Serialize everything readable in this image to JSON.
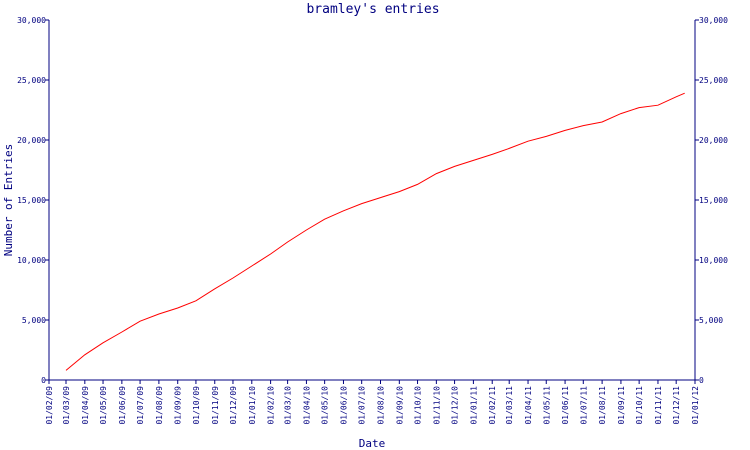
{
  "chart_data": {
    "type": "line",
    "title": "bramley's entries",
    "xlabel": "Date",
    "ylabel": "Number of Entries",
    "ylim": [
      0,
      30000
    ],
    "yticks": [
      0,
      5000,
      10000,
      15000,
      20000,
      25000,
      30000
    ],
    "ytick_labels": [
      "0",
      "5,000",
      "10,000",
      "15,000",
      "20,000",
      "25,000",
      "30,000"
    ],
    "right_axis": true,
    "grid": false,
    "x_tick_labels": [
      "01/02/09",
      "01/03/09",
      "01/04/09",
      "01/05/09",
      "01/06/09",
      "01/07/09",
      "01/08/09",
      "01/09/09",
      "01/10/09",
      "01/11/09",
      "01/12/09",
      "01/01/10",
      "01/02/10",
      "01/03/10",
      "01/04/10",
      "01/05/10",
      "01/06/10",
      "01/07/10",
      "01/08/10",
      "01/09/10",
      "01/10/10",
      "01/11/10",
      "01/12/10",
      "01/01/11",
      "01/02/11",
      "01/03/11",
      "01/04/11",
      "01/05/11",
      "01/06/11",
      "01/07/11",
      "01/08/11",
      "01/09/11",
      "01/10/11",
      "01/11/11",
      "01/12/11",
      "01/01/12"
    ],
    "series": [
      {
        "color": "#ff0000",
        "x": [
          "01/03/09",
          "01/04/09",
          "01/05/09",
          "01/06/09",
          "01/07/09",
          "01/08/09",
          "01/09/09",
          "01/10/09",
          "01/11/09",
          "01/12/09",
          "01/01/10",
          "01/02/10",
          "01/03/10",
          "01/04/10",
          "01/05/10",
          "01/06/10",
          "01/07/10",
          "01/08/10",
          "01/09/10",
          "01/10/10",
          "01/11/10",
          "01/12/10",
          "01/01/11",
          "01/02/11",
          "01/03/11",
          "01/04/11",
          "01/05/11",
          "01/06/11",
          "01/07/11",
          "01/08/11",
          "01/09/11",
          "01/10/11",
          "01/11/11",
          "01/12/11",
          "15/12/11"
        ],
        "values": [
          800,
          2100,
          3100,
          4000,
          4900,
          5500,
          6000,
          6600,
          7600,
          8500,
          9500,
          10500,
          11500,
          12500,
          13400,
          14100,
          14700,
          15200,
          15700,
          16300,
          17200,
          17800,
          18300,
          18800,
          19300,
          19900,
          20300,
          20800,
          21200,
          21500,
          22200,
          22700,
          22900,
          23600,
          23900
        ]
      }
    ]
  }
}
